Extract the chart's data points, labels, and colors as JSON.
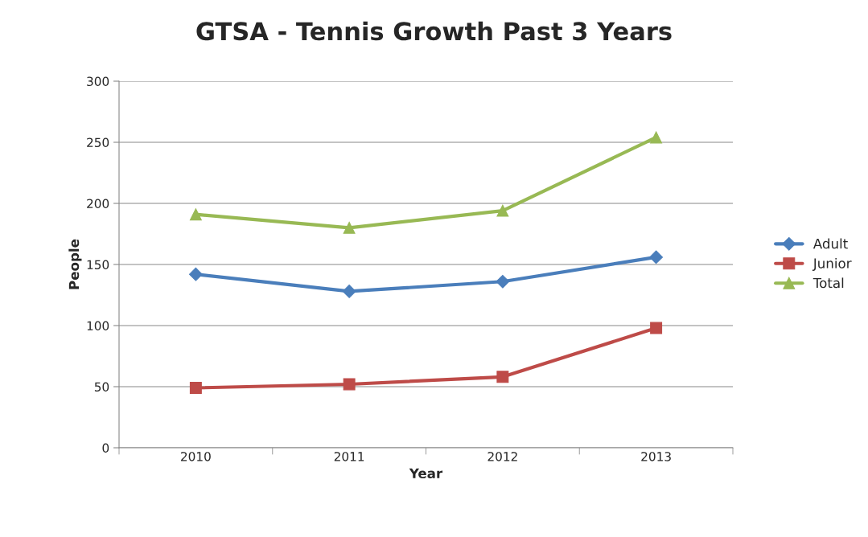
{
  "chart_data": {
    "type": "line",
    "title": "GTSA - Tennis Growth Past 3 Years",
    "xlabel": "Year",
    "ylabel": "People",
    "categories": [
      "2010",
      "2011",
      "2012",
      "2013"
    ],
    "series": [
      {
        "name": "Adult",
        "color": "#4a7ebb",
        "values": [
          142,
          128,
          136,
          156
        ],
        "marker": "diamond"
      },
      {
        "name": "Junior",
        "color": "#be4b48",
        "values": [
          49,
          52,
          58,
          98
        ],
        "marker": "square"
      },
      {
        "name": "Total",
        "color": "#98b954",
        "values": [
          191,
          180,
          194,
          254
        ],
        "marker": "triangle"
      }
    ],
    "ylim": [
      0,
      300
    ],
    "yticks": [
      0,
      50,
      100,
      150,
      200,
      250,
      300
    ],
    "grid": "y",
    "legend": "right"
  }
}
